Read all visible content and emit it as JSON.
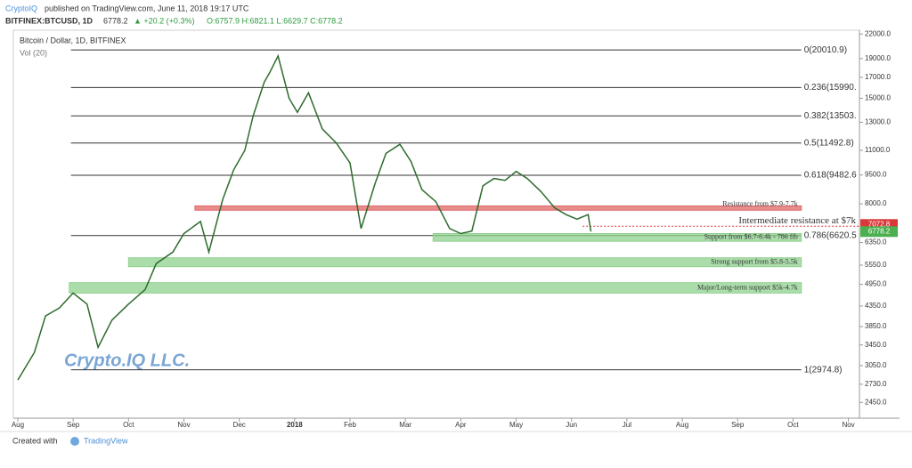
{
  "header": {
    "publisher": "CryptoIQ",
    "published": "published on TradingView.com, June 11, 2018 19:17 UTC",
    "symbol": "BITFINEX:BTCUSD, 1D",
    "last": "6778.2",
    "change": "▲ +20.2 (+0.3%)",
    "ohlc": "O:6757.9 H:6821.1 L:6629.7 C:6778.2"
  },
  "footer": {
    "created": "Created with",
    "brand": "TradingView"
  },
  "chart_data": {
    "type": "line",
    "title": "Bitcoin / Dollar, 1D, BITFINEX",
    "subtitle": "Vol (20)",
    "watermark": "Crypto.IQ LLC.",
    "log_scale": true,
    "color": "#2e6b2e",
    "xlim": [
      -0.08,
      15.2
    ],
    "xticks": [
      {
        "value": 0,
        "label": "Aug"
      },
      {
        "value": 1,
        "label": "Sep"
      },
      {
        "value": 2,
        "label": "Oct"
      },
      {
        "value": 3,
        "label": "Nov"
      },
      {
        "value": 4,
        "label": "Dec"
      },
      {
        "value": 5,
        "label": "2018"
      },
      {
        "value": 6,
        "label": "Feb"
      },
      {
        "value": 7,
        "label": "Mar"
      },
      {
        "value": 8,
        "label": "Apr"
      },
      {
        "value": 9,
        "label": "May"
      },
      {
        "value": 10,
        "label": "Jun"
      },
      {
        "value": 11,
        "label": "Jul"
      },
      {
        "value": 12,
        "label": "Aug"
      },
      {
        "value": 13,
        "label": "Sep"
      },
      {
        "value": 14,
        "label": "Oct"
      },
      {
        "value": 15,
        "label": "Nov"
      }
    ],
    "ylim": [
      2230,
      22500
    ],
    "yticks": [
      {
        "value": 22000,
        "label": "22000.0"
      },
      {
        "value": 19000,
        "label": "19000.0"
      },
      {
        "value": 17000,
        "label": "17000.0"
      },
      {
        "value": 15000,
        "label": "15000.0"
      },
      {
        "value": 13000,
        "label": "13000.0"
      },
      {
        "value": 11000,
        "label": "11000.0"
      },
      {
        "value": 9500,
        "label": "9500.0"
      },
      {
        "value": 8000,
        "label": "8000.0"
      },
      {
        "value": 6350,
        "label": "6350.0"
      },
      {
        "value": 5550,
        "label": "5550.0"
      },
      {
        "value": 4950,
        "label": "4950.0"
      },
      {
        "value": 4350,
        "label": "4350.0"
      },
      {
        "value": 3850,
        "label": "3850.0"
      },
      {
        "value": 3450,
        "label": "3450.0"
      },
      {
        "value": 3050,
        "label": "3050.0"
      },
      {
        "value": 2730,
        "label": "2730.0"
      },
      {
        "value": 2450,
        "label": "2450.0"
      }
    ],
    "x": [
      0,
      0.3,
      0.5,
      0.75,
      1.0,
      1.25,
      1.45,
      1.7,
      2.0,
      2.3,
      2.5,
      2.8,
      3.0,
      3.3,
      3.45,
      3.7,
      3.9,
      4.1,
      4.25,
      4.45,
      4.55,
      4.7,
      4.9,
      5.05,
      5.25,
      5.5,
      5.75,
      6.0,
      6.2,
      6.45,
      6.65,
      6.9,
      7.1,
      7.3,
      7.55,
      7.8,
      8.0,
      8.2,
      8.4,
      8.6,
      8.8,
      9.0,
      9.2,
      9.45,
      9.7,
      9.9,
      10.1,
      10.3,
      10.35
    ],
    "values": [
      2800,
      3300,
      4100,
      4300,
      4700,
      4400,
      3400,
      4000,
      4400,
      4800,
      5600,
      6000,
      6700,
      7200,
      6000,
      8200,
      9800,
      11000,
      13500,
      16500,
      17500,
      19300,
      15000,
      13800,
      15500,
      12500,
      11500,
      10200,
      6900,
      9000,
      10800,
      11400,
      10300,
      8700,
      8100,
      6900,
      6700,
      6800,
      8900,
      9300,
      9200,
      9700,
      9300,
      8600,
      7800,
      7500,
      7300,
      7500,
      6778.2
    ],
    "fib_levels": [
      {
        "value": 20010.9,
        "label": "0(20010.9)"
      },
      {
        "value": 15990,
        "label": "0.236(15990."
      },
      {
        "value": 13503,
        "label": "0.382(13503."
      },
      {
        "value": 11492.8,
        "label": "0.5(11492.8)"
      },
      {
        "value": 9482.6,
        "label": "0.618(9482.6"
      },
      {
        "value": 6620.5,
        "label": "0.786(6620.5"
      },
      {
        "value": 2974.8,
        "label": "1(2974.8)"
      }
    ],
    "fib_from": 0.96,
    "zone_to": 14.15,
    "zones": [
      {
        "label": "Resistance from $7.9-7.7k",
        "high": 7900,
        "low": 7700,
        "from": 3.2,
        "color": "#e06666"
      },
      {
        "label": "Support from $6.7-6.4k - 786 fib",
        "high": 6700,
        "low": 6400,
        "from": 7.5,
        "color": "#8fd18f"
      },
      {
        "label": "Strong support from $5.8-5.5k",
        "high": 5800,
        "low": 5500,
        "from": 2.0,
        "color": "#8fd18f"
      },
      {
        "label": "Major/Long-term support $5k-4.7k",
        "high": 5000,
        "low": 4700,
        "from": 0.93,
        "color": "#8fd18f"
      }
    ],
    "resistance_line": {
      "label": "Intermediate resistance at $7k",
      "value": 7000,
      "from": 10.2,
      "color": "#d33"
    },
    "price_labels": [
      {
        "value": 7072.8,
        "color": "#d9393a"
      },
      {
        "value": 6778.2,
        "color": "#4caf50"
      }
    ]
  }
}
